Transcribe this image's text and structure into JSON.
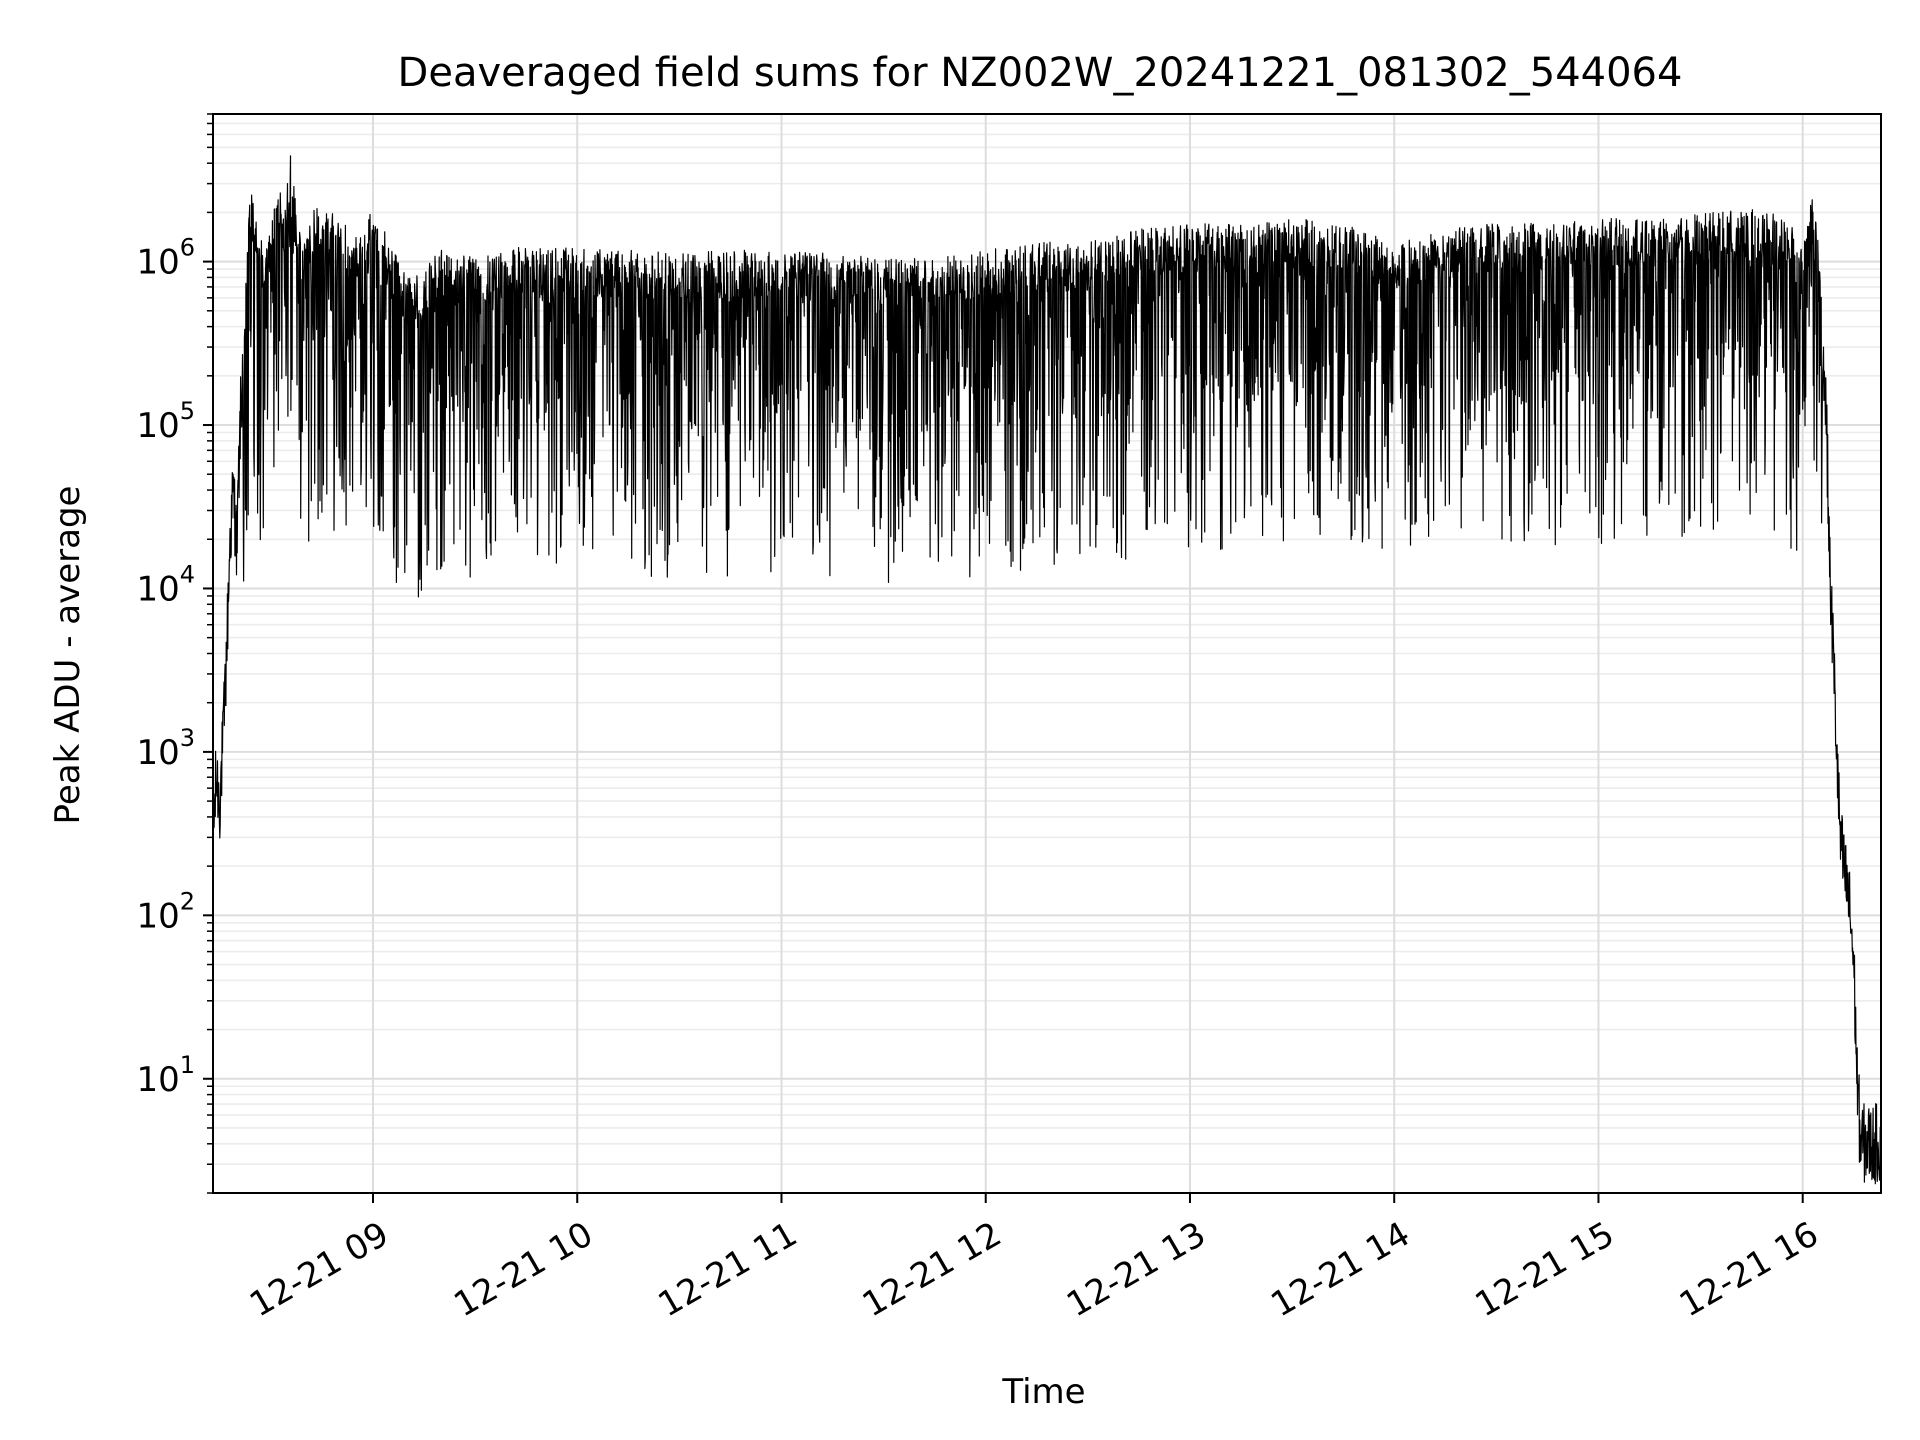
{
  "chart_data": {
    "type": "line",
    "title": "Deaveraged field sums for NZ002W_20241221_081302_544064",
    "xlabel": "Time",
    "ylabel": "Peak ADU - average",
    "xscale": "time",
    "yscale": "log",
    "xlim": [
      "2024-12-21 08:13",
      "2024-12-21 16:23"
    ],
    "ylim": [
      2,
      8000000
    ],
    "grid": {
      "major": true,
      "minor": true
    },
    "legend": "none",
    "x_ticks": [
      {
        "label": "12-21 09",
        "value": "2024-12-21 09:00"
      },
      {
        "label": "12-21 10",
        "value": "2024-12-21 10:00"
      },
      {
        "label": "12-21 11",
        "value": "2024-12-21 11:00"
      },
      {
        "label": "12-21 12",
        "value": "2024-12-21 12:00"
      },
      {
        "label": "12-21 13",
        "value": "2024-12-21 13:00"
      },
      {
        "label": "12-21 14",
        "value": "2024-12-21 14:00"
      },
      {
        "label": "12-21 15",
        "value": "2024-12-21 15:00"
      },
      {
        "label": "12-21 16",
        "value": "2024-12-21 16:00"
      }
    ],
    "y_ticks": [
      {
        "base": "10",
        "exp": "1",
        "value": 10
      },
      {
        "base": "10",
        "exp": "2",
        "value": 100
      },
      {
        "base": "10",
        "exp": "3",
        "value": 1000
      },
      {
        "base": "10",
        "exp": "4",
        "value": 10000
      },
      {
        "base": "10",
        "exp": "5",
        "value": 100000
      },
      {
        "base": "10",
        "exp": "6",
        "value": 1000000
      }
    ],
    "series_color": "#000000",
    "series": [
      {
        "x": [
          "2024-12-21 08:13",
          "2024-12-21 08:14",
          "2024-12-21 08:15",
          "2024-12-21 08:16",
          "2024-12-21 08:17",
          "2024-12-21 08:18",
          "2024-12-21 08:19",
          "2024-12-21 08:20",
          "2024-12-21 08:21",
          "2024-12-21 08:22",
          "2024-12-21 08:23",
          "2024-12-21 08:24",
          "2024-12-21 08:26",
          "2024-12-21 08:28",
          "2024-12-21 08:30",
          "2024-12-21 08:32",
          "2024-12-21 08:34",
          "2024-12-21 08:36",
          "2024-12-21 08:38",
          "2024-12-21 08:40",
          "2024-12-21 08:42",
          "2024-12-21 08:45",
          "2024-12-21 08:50",
          "2024-12-21 08:55",
          "2024-12-21 09:00",
          "2024-12-21 09:05",
          "2024-12-21 09:10",
          "2024-12-21 09:15",
          "2024-12-21 09:20",
          "2024-12-21 09:30",
          "2024-12-21 09:40",
          "2024-12-21 09:50",
          "2024-12-21 10:00",
          "2024-12-21 10:15",
          "2024-12-21 10:30",
          "2024-12-21 10:45",
          "2024-12-21 11:00",
          "2024-12-21 11:15",
          "2024-12-21 11:30",
          "2024-12-21 11:45",
          "2024-12-21 12:00",
          "2024-12-21 12:15",
          "2024-12-21 12:30",
          "2024-12-21 12:45",
          "2024-12-21 13:00",
          "2024-12-21 13:15",
          "2024-12-21 13:30",
          "2024-12-21 13:45",
          "2024-12-21 14:00",
          "2024-12-21 14:15",
          "2024-12-21 14:30",
          "2024-12-21 14:45",
          "2024-12-21 15:00",
          "2024-12-21 15:15",
          "2024-12-21 15:30",
          "2024-12-21 15:45",
          "2024-12-21 15:55",
          "2024-12-21 16:00",
          "2024-12-21 16:03",
          "2024-12-21 16:05",
          "2024-12-21 16:07",
          "2024-12-21 16:08",
          "2024-12-21 16:09",
          "2024-12-21 16:10",
          "2024-12-21 16:11",
          "2024-12-21 16:12",
          "2024-12-21 16:13",
          "2024-12-21 16:14",
          "2024-12-21 16:15",
          "2024-12-21 16:16",
          "2024-12-21 16:17",
          "2024-12-21 16:18",
          "2024-12-21 16:20",
          "2024-12-21 16:23"
        ],
        "y": [
          300,
          700,
          500,
          1200,
          4000,
          20000,
          40000,
          18000,
          100000,
          300000,
          1000000,
          2300000,
          1500000,
          800000,
          1200000,
          2400000,
          1500000,
          4000000,
          1200000,
          1000000,
          1500000,
          1800000,
          1500000,
          1200000,
          1600000,
          1000000,
          600000,
          700000,
          900000,
          800000,
          900000,
          1000000,
          900000,
          900000,
          850000,
          900000,
          900000,
          850000,
          800000,
          800000,
          900000,
          1000000,
          1000000,
          1200000,
          1300000,
          1300000,
          1400000,
          1300000,
          1000000,
          1200000,
          1300000,
          1300000,
          1400000,
          1400000,
          1500000,
          1600000,
          1500000,
          900000,
          2000000,
          1000000,
          100000,
          12000,
          4000,
          1000,
          300,
          200,
          150,
          100,
          50,
          10,
          4,
          4,
          4,
          4
        ]
      }
    ]
  }
}
